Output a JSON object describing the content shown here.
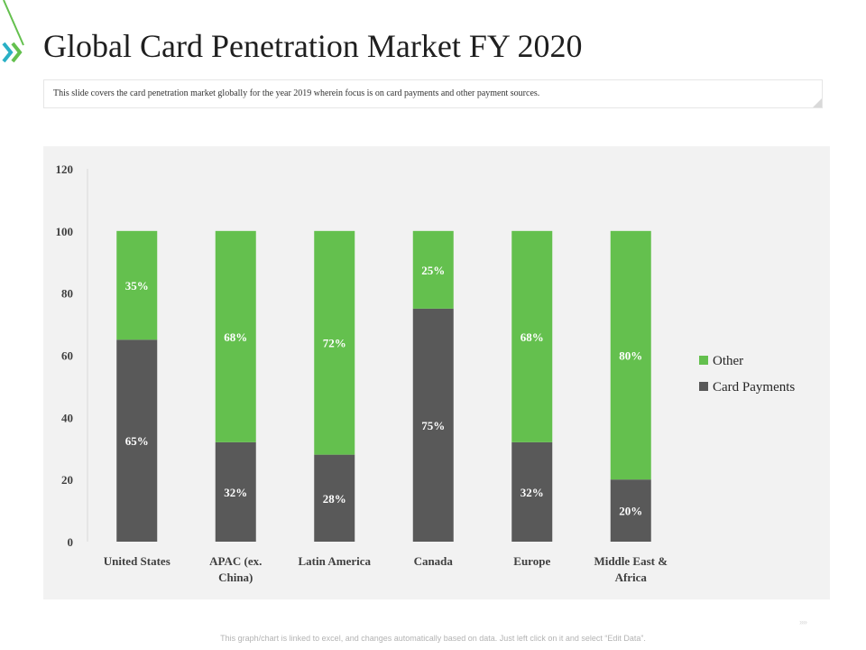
{
  "header": {
    "title": "Global Card Penetration Market FY 2020",
    "description": "This slide covers the card penetration market globally for the year 2019 wherein focus is on card payments and other payment sources."
  },
  "footer": {
    "note": "This graph/chart is linked to excel, and changes automatically based on data. Just left click on it and select “Edit Data”.",
    "arrows": "››››"
  },
  "colors": {
    "accent_green": "#64c04e",
    "dark_gray": "#595959",
    "panel_bg": "#f2f2f2"
  },
  "chart_data": {
    "type": "bar",
    "stacked": true,
    "categories": [
      "United States",
      "APAC (ex. China)",
      "Latin America",
      "Canada",
      "Europe",
      "Middle East & Africa"
    ],
    "category_label_lines": [
      [
        "United States"
      ],
      [
        "APAC (ex.",
        "China)"
      ],
      [
        "Latin America"
      ],
      [
        "Canada"
      ],
      [
        "Europe"
      ],
      [
        "Middle East &",
        "Africa"
      ]
    ],
    "series": [
      {
        "name": "Card Payments",
        "color": "#595959",
        "values": [
          65,
          32,
          28,
          75,
          32,
          20
        ],
        "labels": [
          "65%",
          "32%",
          "28%",
          "75%",
          "32%",
          "20%"
        ]
      },
      {
        "name": "Other",
        "color": "#64c04e",
        "values": [
          35,
          68,
          72,
          25,
          68,
          80
        ],
        "labels": [
          "35%",
          "68%",
          "72%",
          "25%",
          "68%",
          "80%"
        ]
      }
    ],
    "ylim": [
      0,
      120
    ],
    "yticks": [
      "0",
      "20",
      "40",
      "60",
      "80",
      "100",
      "120"
    ],
    "legend": [
      "Other",
      "Card Payments"
    ],
    "legend_position": "right",
    "grid": false,
    "xlabel": "",
    "ylabel": ""
  }
}
